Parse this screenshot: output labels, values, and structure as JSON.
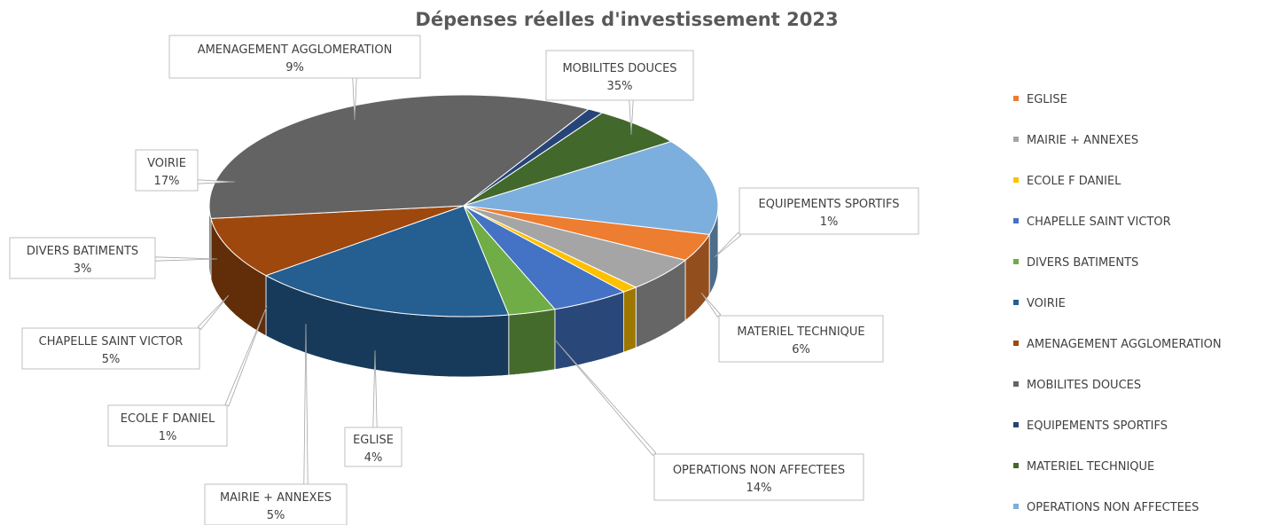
{
  "chart_data": {
    "type": "pie",
    "title": "Dépenses réelles d'investissement 2023",
    "categories": [
      "EGLISE",
      "MAIRIE + ANNEXES",
      "ECOLE F DANIEL",
      "CHAPELLE SAINT VICTOR",
      "DIVERS BATIMENTS",
      "VOIRIE",
      "AMENAGEMENT AGGLOMERATION",
      "MOBILITES DOUCES",
      "EQUIPEMENTS SPORTIFS",
      "MATERIEL TECHNIQUE",
      "OPERATIONS NON AFFECTEES"
    ],
    "values": [
      4,
      5,
      1,
      5,
      3,
      17,
      9,
      35,
      1,
      6,
      14
    ],
    "data_labels": [
      "4%",
      "5%",
      "1%",
      "5%",
      "3%",
      "17%",
      "9%",
      "35%",
      "1%",
      "6%",
      "14%"
    ],
    "colors": [
      "#ED7D31",
      "#A5A5A5",
      "#FFC000",
      "#4472C4",
      "#70AD47",
      "#255E91",
      "#9E480E",
      "#636363",
      "#264478",
      "#43682B",
      "#7CAFDD"
    ],
    "style": "3d",
    "legend": "right"
  }
}
